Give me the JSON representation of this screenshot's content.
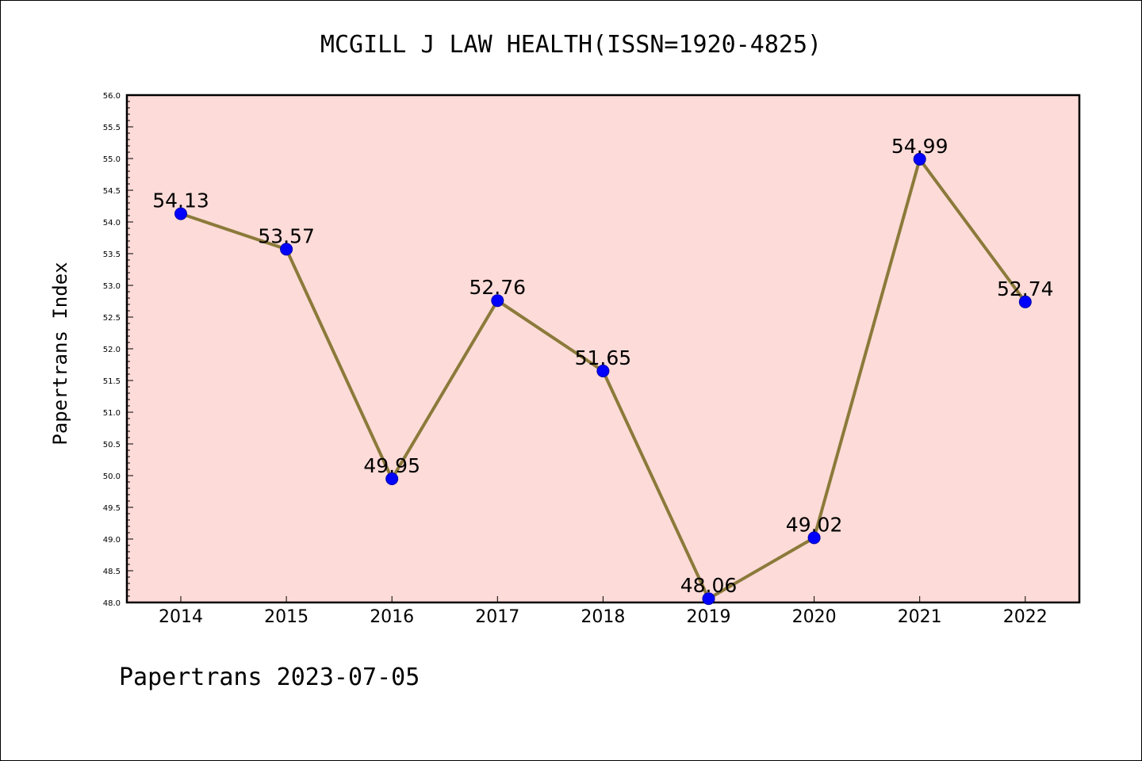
{
  "chart_data": {
    "type": "line",
    "title": "MCGILL J LAW HEALTH(ISSN=1920-4825)",
    "ylabel": "Papertrans Index",
    "xlabel": "",
    "footer": "Papertrans 2023-07-05",
    "categories": [
      "2014",
      "2015",
      "2016",
      "2017",
      "2018",
      "2019",
      "2020",
      "2021",
      "2022"
    ],
    "values": [
      54.13,
      53.57,
      49.95,
      52.76,
      51.65,
      48.06,
      49.02,
      54.99,
      52.74
    ],
    "data_labels": [
      "54.13",
      "53.57",
      "49.95",
      "52.76",
      "51.65",
      "48.06",
      "49.02",
      "54.99",
      "52.74"
    ],
    "ylim": [
      48.0,
      56.0
    ],
    "yticks": [
      "48.0",
      "48.5",
      "49.0",
      "49.5",
      "50.0",
      "50.5",
      "51.0",
      "51.5",
      "52.0",
      "52.5",
      "53.0",
      "53.5",
      "54.0",
      "54.5",
      "55.0",
      "55.5",
      "56.0"
    ],
    "grid": false,
    "colors": {
      "plot_background": "#fddbd8",
      "line": "#8b7a3a",
      "marker": "#0000ff"
    }
  }
}
